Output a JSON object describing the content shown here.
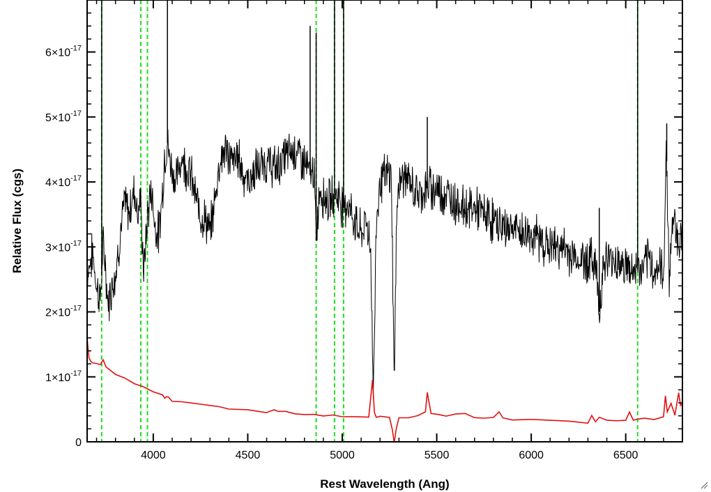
{
  "chart_data": {
    "type": "line",
    "title": "",
    "xlabel": "Rest Wavelength (Ang)",
    "ylabel": "Relative Flux (cgs)",
    "xlim": [
      3650,
      6800
    ],
    "ylim": [
      0,
      6.8e-17
    ],
    "x_ticks": [
      4000,
      4500,
      5000,
      5500,
      6000,
      6500
    ],
    "x_tick_labels": [
      "4000",
      "4500",
      "5000",
      "5500",
      "6000",
      "6500"
    ],
    "y_ticks": [
      0,
      1e-17,
      2e-17,
      3e-17,
      4e-17,
      5e-17,
      6e-17
    ],
    "y_tick_labels": [
      {
        "mantissa": "0",
        "exponent": ""
      },
      {
        "mantissa": "1×10",
        "exponent": "-17"
      },
      {
        "mantissa": "2×10",
        "exponent": "-17"
      },
      {
        "mantissa": "3×10",
        "exponent": "-17"
      },
      {
        "mantissa": "4×10",
        "exponent": "-17"
      },
      {
        "mantissa": "5×10",
        "exponent": "-17"
      },
      {
        "mantissa": "6×10",
        "exponent": "-17"
      }
    ],
    "grid": false,
    "series": [
      {
        "color": "#000000",
        "x": [
          3650,
          3680,
          3700,
          3720,
          3735,
          3745,
          3760,
          3780,
          3800,
          3830,
          3850,
          3870,
          3900,
          3920,
          3930,
          3950,
          3970,
          3990,
          4010,
          4030,
          4050,
          4060,
          4075,
          4090,
          4100,
          4120,
          4150,
          4180,
          4200,
          4220,
          4250,
          4280,
          4300,
          4320,
          4350,
          4380,
          4400,
          4420,
          4450,
          4480,
          4500,
          4550,
          4600,
          4650,
          4700,
          4750,
          4800,
          4830,
          4850,
          4862,
          4880,
          4900,
          4930,
          4960,
          4980,
          5007,
          5030,
          5050,
          5080,
          5100,
          5130,
          5150,
          5165,
          5180,
          5200,
          5230,
          5260,
          5275,
          5290,
          5300,
          5330,
          5350,
          5400,
          5450,
          5500,
          5550,
          5600,
          5650,
          5700,
          5750,
          5800,
          5850,
          5900,
          5950,
          6000,
          6050,
          6100,
          6150,
          6200,
          6250,
          6300,
          6340,
          6360,
          6380,
          6400,
          6450,
          6500,
          6540,
          6563,
          6580,
          6600,
          6630,
          6650,
          6680,
          6700,
          6715,
          6730,
          6750,
          6780,
          6800
        ],
        "y": [
          2.6e-17,
          2.9e-17,
          2.4e-17,
          2.2e-17,
          3e-17,
          2.8e-17,
          2.1e-17,
          2.4e-17,
          2.6e-17,
          3.3e-17,
          3.7e-17,
          3.5e-17,
          3.9e-17,
          3.5e-17,
          3.8e-17,
          2.6e-17,
          3.5e-17,
          3.9e-17,
          3.3e-17,
          3.2e-17,
          3.9e-17,
          4.4e-17,
          4.6e-17,
          4.3e-17,
          4.2e-17,
          4e-17,
          4.4e-17,
          4.2e-17,
          4.1e-17,
          3.8e-17,
          3.5e-17,
          3.4e-17,
          3.2e-17,
          3.6e-17,
          4.3e-17,
          4.5e-17,
          4.4e-17,
          4.3e-17,
          4.4e-17,
          4.1e-17,
          4e-17,
          4.2e-17,
          4.3e-17,
          4.2e-17,
          4.4e-17,
          4.5e-17,
          4.3e-17,
          4.1e-17,
          4.2e-17,
          3.1e-17,
          3.9e-17,
          3.8e-17,
          3.7e-17,
          3.8e-17,
          3.8e-17,
          3.6e-17,
          3.7e-17,
          3.5e-17,
          3.3e-17,
          3.2e-17,
          3.4e-17,
          3e-17,
          7e-18,
          3.4e-17,
          4e-17,
          4.1e-17,
          4.1e-17,
          9e-18,
          3.8e-17,
          4e-17,
          4.1e-17,
          4e-17,
          3.8e-17,
          3.9e-17,
          3.9e-17,
          3.8e-17,
          3.7e-17,
          3.6e-17,
          3.6e-17,
          3.5e-17,
          3.4e-17,
          3.3e-17,
          3.3e-17,
          3.2e-17,
          3.2e-17,
          3.1e-17,
          3e-17,
          3e-17,
          2.9e-17,
          2.8e-17,
          2.8e-17,
          2.8e-17,
          2e-17,
          2.7e-17,
          2.8e-17,
          2.8e-17,
          2.7e-17,
          2.6e-17,
          2.7e-17,
          2.6e-17,
          2.7e-17,
          2.8e-17,
          2.6e-17,
          2.7e-17,
          2.5e-17,
          4.6e-17,
          2.5e-17,
          3.5e-17,
          3.1e-17,
          3.1e-17
        ]
      },
      {
        "color": "#e01010",
        "x": [
          3650,
          3660,
          3670,
          3680,
          3700,
          3720,
          3735,
          3750,
          3800,
          3850,
          3900,
          3950,
          4000,
          4050,
          4060,
          4070,
          4080,
          4100,
          4150,
          4200,
          4250,
          4300,
          4350,
          4400,
          4500,
          4550,
          4600,
          4640,
          4660,
          4700,
          4750,
          4800,
          4850,
          4900,
          4950,
          5000,
          5050,
          5100,
          5140,
          5160,
          5170,
          5180,
          5200,
          5250,
          5265,
          5275,
          5285,
          5300,
          5350,
          5400,
          5440,
          5450,
          5470,
          5500,
          5550,
          5600,
          5650,
          5700,
          5750,
          5800,
          5830,
          5850,
          5900,
          6000,
          6100,
          6200,
          6300,
          6320,
          6340,
          6360,
          6400,
          6450,
          6500,
          6520,
          6540,
          6563,
          6600,
          6650,
          6700,
          6710,
          6720,
          6740,
          6760,
          6780,
          6790,
          6800
        ],
        "y": [
          1.6e-17,
          1.3e-17,
          1.25e-17,
          1.2e-17,
          1.22e-17,
          1.2e-17,
          1.25e-17,
          1.15e-17,
          1.05e-17,
          9.8e-18,
          9e-18,
          8.5e-18,
          7.8e-18,
          7.2e-18,
          6.8e-18,
          7e-18,
          6.8e-18,
          6.3e-18,
          6.2e-18,
          6e-18,
          5.7e-18,
          5.5e-18,
          5.3e-18,
          5.1e-18,
          4.8e-18,
          4.7e-18,
          4.6e-18,
          5e-18,
          4.6e-18,
          4.6e-18,
          4.4e-18,
          4.3e-18,
          4.2e-18,
          4.1e-18,
          4e-18,
          4e-18,
          3.9e-18,
          3.8e-18,
          3.8e-18,
          9.5e-18,
          4.5e-18,
          3.8e-18,
          3.8e-18,
          3.8e-18,
          2e-18,
          0.0,
          2e-18,
          3.8e-18,
          3.8e-18,
          4e-18,
          4.5e-18,
          7.5e-18,
          4.2e-18,
          4.2e-18,
          4e-18,
          4.2e-18,
          4.5e-18,
          3.8e-18,
          3.7e-18,
          3.8e-18,
          4.5e-18,
          3.8e-18,
          3.5e-18,
          3.4e-18,
          3.3e-18,
          3.2e-18,
          3e-18,
          4.2e-18,
          3.2e-18,
          3.8e-18,
          3.2e-18,
          3.3e-18,
          3.4e-18,
          4.5e-18,
          3.3e-18,
          3.4e-18,
          3.5e-18,
          3.5e-18,
          3.8e-18,
          7e-18,
          4.5e-18,
          6e-18,
          4e-18,
          7.5e-18,
          5.5e-18,
          6e-18
        ]
      }
    ],
    "emission_line_spikes": [
      {
        "x": 3727,
        "y": 7e-17
      },
      {
        "x": 4075,
        "y": 7e-17
      },
      {
        "x": 4830,
        "y": 6.4e-17
      },
      {
        "x": 4862,
        "y": 6.3e-17
      },
      {
        "x": 4959,
        "y": 7e-17
      },
      {
        "x": 5007,
        "y": 7e-17
      },
      {
        "x": 5450,
        "y": 5e-17
      },
      {
        "x": 6360,
        "y": 3.6e-17
      },
      {
        "x": 6563,
        "y": 7e-17
      },
      {
        "x": 6717,
        "y": 4.9e-17
      }
    ],
    "vertical_lines": {
      "color": "#22dd22",
      "style": "dashed",
      "x": [
        3727,
        3934,
        3969,
        4862,
        4959,
        5007,
        6563
      ]
    }
  }
}
